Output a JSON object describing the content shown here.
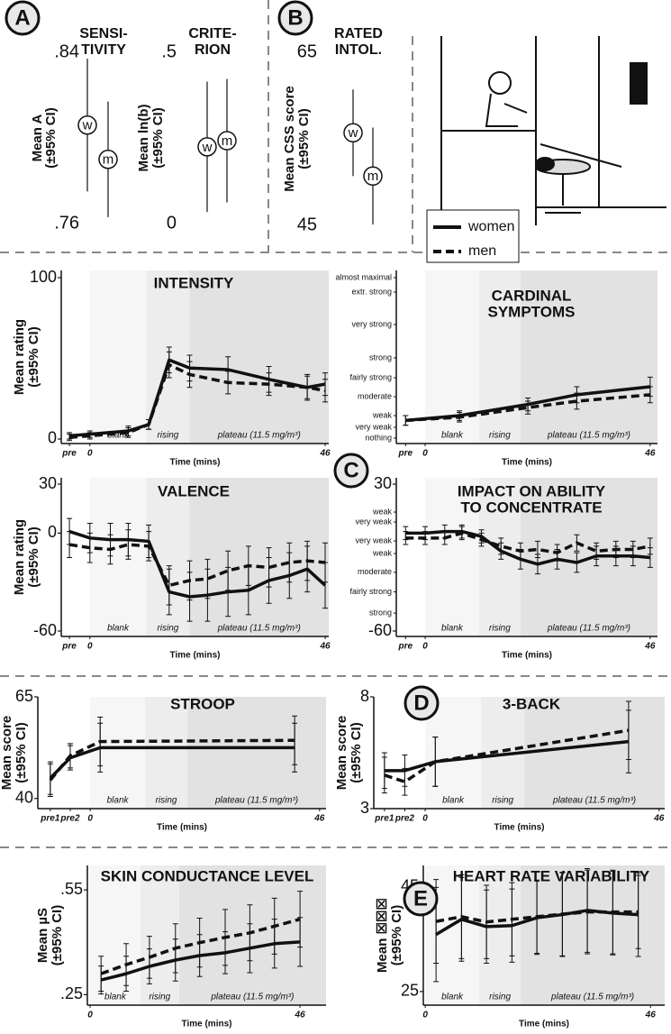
{
  "legend": [
    {
      "name": "women",
      "dash": "solid"
    },
    {
      "name": "men",
      "dash": "dashed"
    }
  ],
  "chart_data": [
    {
      "type": "interval",
      "panel_label": "A",
      "title_lines": [
        "SENSI-",
        "TIVITY"
      ],
      "ylabel_lines": [
        "Mean A",
        "(±95% CI)"
      ],
      "ylim": [
        0.76,
        0.84
      ],
      "yticks": [
        {
          "value": 0.76,
          "label": ".76"
        },
        {
          "value": 0.84,
          "label": ".84"
        }
      ],
      "series": [
        {
          "marker": "w",
          "values": [
            0.806
          ],
          "errors": [
            0.031
          ]
        },
        {
          "marker": "m",
          "values": [
            0.79
          ],
          "errors": [
            0.027
          ]
        }
      ]
    },
    {
      "type": "interval",
      "title_lines": [
        "CRITE-",
        "RION"
      ],
      "ylabel_lines": [
        "Mean ln(b)",
        "(±95% CI)"
      ],
      "ylim": [
        0,
        0.5
      ],
      "yticks": [
        0,
        {
          "value": 0.5,
          "label": ".5"
        }
      ],
      "series": [
        {
          "marker": "w",
          "values": [
            0.224
          ],
          "errors": [
            0.19
          ]
        },
        {
          "marker": "m",
          "values": [
            0.242
          ],
          "errors": [
            0.18
          ]
        }
      ]
    },
    {
      "type": "interval",
      "panel_label": "B",
      "title_lines": [
        "RATED",
        "INTOL."
      ],
      "ylabel_lines": [
        "Mean CSS score",
        "(±95% CI)"
      ],
      "ylim": [
        45,
        65
      ],
      "yticks": [
        45,
        65
      ],
      "series": [
        {
          "marker": "w",
          "values": [
            55.7
          ],
          "errors": [
            5
          ]
        },
        {
          "marker": "m",
          "values": [
            50.7
          ],
          "errors": [
            5.6
          ]
        }
      ]
    },
    {
      "type": "line",
      "title_lines": [
        "INTENSITY"
      ],
      "ylabel_lines": [
        "Mean rating",
        "(±95% CI)"
      ],
      "xlabel": "Time (mins)",
      "x": [
        -4,
        0,
        7.5,
        11.5,
        15.5,
        19.5,
        27,
        35,
        42.5,
        46
      ],
      "xlim": [
        -5.6,
        46.7
      ],
      "xticks": [
        {
          "value": -4,
          "label": "pre"
        },
        0,
        46
      ],
      "ylim": [
        -2.8,
        104.5
      ],
      "yticks": [
        0,
        100
      ],
      "regions": [
        {
          "label": "blank",
          "start": 0,
          "color": "#f6f6f6"
        },
        {
          "label": "rising",
          "start": 11,
          "color": "#ededed"
        },
        {
          "label": "plateau (11.5 mg/m³)",
          "start": 19.5,
          "color": "#e2e2e2"
        }
      ],
      "series": [
        {
          "values": [
            2,
            3,
            5,
            9,
            49,
            44,
            43,
            37,
            32,
            34
          ],
          "errors": [
            2,
            2,
            3,
            3,
            8,
            8,
            8,
            8,
            8,
            7
          ]
        },
        {
          "values": [
            1,
            2,
            4,
            9,
            46,
            40,
            35,
            34,
            32,
            30
          ],
          "errors": [
            2,
            2,
            3,
            3,
            8,
            8,
            7,
            7,
            7,
            7
          ]
        }
      ]
    },
    {
      "type": "line",
      "title_lines": [
        "CARDINAL",
        "SYMPTOMS"
      ],
      "xlabel": "Time (mins)",
      "x": [
        -4,
        7,
        21,
        31,
        46
      ],
      "xlim": [
        -5.9,
        47.5
      ],
      "xticks": [
        {
          "value": -4,
          "label": "pre"
        },
        0,
        46
      ],
      "ylim": [
        -3.4,
        104.5
      ],
      "category_ticks": [
        {
          "value": 100,
          "label": "almost maximal"
        },
        {
          "value": 91,
          "label": "extr. strong"
        },
        {
          "value": 70.8,
          "label": "very strong"
        },
        {
          "value": 50,
          "label": "strong"
        },
        {
          "value": 37.6,
          "label": "fairly strong"
        },
        {
          "value": 25.8,
          "label": "moderate"
        },
        {
          "value": 14,
          "label": "weak"
        },
        {
          "value": 6.7,
          "label": "very weak"
        },
        {
          "value": 0,
          "label": "nothing"
        }
      ],
      "regions": [
        {
          "label": "blank",
          "start": 0,
          "color": "#f6f6f6"
        },
        {
          "label": "rising",
          "start": 11,
          "color": "#ededed"
        },
        {
          "label": "plateau (11.5 mg/m³)",
          "start": 19.5,
          "color": "#e2e2e2"
        }
      ],
      "series": [
        {
          "values": [
            11,
            14,
            21,
            27,
            32
          ],
          "errors": [
            3,
            3,
            4,
            5,
            6
          ]
        },
        {
          "values": [
            11,
            13,
            19,
            23,
            27
          ],
          "errors": [
            3,
            3,
            4,
            5,
            5
          ]
        }
      ]
    },
    {
      "type": "line",
      "title_lines": [
        "VALENCE"
      ],
      "ylabel_lines": [
        "Mean rating",
        "(±95% CI)"
      ],
      "xlabel": "Time (mins)",
      "x": [
        -4,
        0,
        4,
        7.5,
        11.5,
        15.5,
        19.5,
        23,
        27,
        31,
        35,
        39,
        42.5,
        46
      ],
      "xlim": [
        -5.6,
        46.7
      ],
      "xticks": [
        {
          "value": -4,
          "label": "pre"
        },
        0,
        46
      ],
      "ylim": [
        -63.3,
        33.9
      ],
      "yticks": [
        -60,
        0,
        30
      ],
      "regions": [
        {
          "label": "blank",
          "start": 0,
          "color": "#f6f6f6"
        },
        {
          "label": "rising",
          "start": 11,
          "color": "#ededed"
        },
        {
          "label": "plateau (11.5 mg/m³)",
          "start": 19.5,
          "color": "#e2e2e2"
        }
      ],
      "series": [
        {
          "values": [
            1,
            -3,
            -4,
            -4,
            -5,
            -36,
            -39,
            -38,
            -36,
            -35,
            -29,
            -26,
            -22,
            -32
          ],
          "errors": [
            8,
            9,
            10,
            10,
            10,
            14,
            15,
            16,
            15,
            15,
            14,
            14,
            14,
            14
          ]
        },
        {
          "values": [
            -7,
            -9,
            -10,
            -7,
            -8,
            -32,
            -29,
            -28,
            -23,
            -20,
            -21,
            -18,
            -17,
            -18
          ],
          "errors": [
            8,
            9,
            9,
            9,
            9,
            12,
            12,
            12,
            12,
            12,
            12,
            12,
            12,
            12
          ]
        }
      ]
    },
    {
      "type": "line",
      "panel_label": "C",
      "title_lines": [
        "IMPACT ON ABILITY",
        "TO CONCENTRATE"
      ],
      "xlabel": "Time (mins)",
      "x": [
        -4,
        0,
        4,
        7.5,
        11.5,
        15.5,
        19.5,
        23,
        27,
        31,
        35,
        39,
        42.5,
        46
      ],
      "xlim": [
        -5.9,
        47.5
      ],
      "xticks": [
        {
          "value": -4,
          "label": "pre"
        },
        0,
        46
      ],
      "ylim": [
        -63.3,
        33.9
      ],
      "yticks": [
        -60,
        30
      ],
      "category_ticks": [
        {
          "value": 12.9,
          "label": "weak"
        },
        {
          "value": 6.8,
          "label": "very weak"
        },
        {
          "value": -4.8,
          "label": "very weak"
        },
        {
          "value": -12.5,
          "label": "weak"
        },
        {
          "value": -24,
          "label": "moderate"
        },
        {
          "value": -36,
          "label": "fairly strong"
        },
        {
          "value": -49,
          "label": "strong"
        }
      ],
      "regions": [
        {
          "label": "blank",
          "start": 0,
          "color": "#f6f6f6"
        },
        {
          "label": "rising",
          "start": 11,
          "color": "#ededed"
        },
        {
          "label": "plateau (11.5 mg/m³)",
          "start": 19.5,
          "color": "#e2e2e2"
        }
      ],
      "series": [
        {
          "values": [
            0,
            0,
            1,
            1,
            -2,
            -11,
            -16,
            -19,
            -16,
            -18,
            -14,
            -14,
            -14,
            -15
          ],
          "errors": [
            4,
            4,
            4,
            4,
            4,
            5,
            6,
            6,
            6,
            6,
            6,
            6,
            6,
            6
          ]
        },
        {
          "values": [
            -3,
            -3,
            -3,
            0,
            -4,
            -8,
            -11,
            -10,
            -12,
            -6,
            -11,
            -10,
            -10,
            -8
          ],
          "errors": [
            4,
            4,
            4,
            4,
            4,
            5,
            5,
            5,
            5,
            5,
            5,
            5,
            5,
            5
          ]
        }
      ]
    },
    {
      "type": "line",
      "title_lines": [
        "STROOP"
      ],
      "ylabel_lines": [
        "Mean score",
        "(±95% CI)"
      ],
      "xlabel": "Time (mins)",
      "x": [
        -8,
        -4,
        2,
        41
      ],
      "xlim": [
        -10.5,
        47.3
      ],
      "xticks": [
        {
          "value": -8,
          "label": "pre1"
        },
        {
          "value": -4,
          "label": "pre2"
        },
        0,
        46
      ],
      "ylim": [
        37.5,
        65
      ],
      "yticks": [
        40,
        65
      ],
      "regions": [
        {
          "label": "blank",
          "start": 0,
          "color": "#f6f6f6"
        },
        {
          "label": "rising",
          "start": 11,
          "color": "#ededed"
        },
        {
          "label": "plateau (11.5 mg/m³)",
          "start": 19.5,
          "color": "#e2e2e2"
        }
      ],
      "series": [
        {
          "values": [
            45,
            50,
            52.5,
            52.5
          ],
          "errors": [
            4,
            3,
            6,
            6
          ]
        },
        {
          "values": [
            44.5,
            50.5,
            54,
            54.3
          ],
          "errors": [
            4,
            3,
            6,
            6
          ]
        }
      ]
    },
    {
      "type": "line",
      "panel_label": "D",
      "title_lines": [
        "3-BACK"
      ],
      "ylabel_lines": [
        "Mean score",
        "(±95% CI)"
      ],
      "xlabel": "Time (mins)",
      "x": [
        -8,
        -4,
        2,
        40
      ],
      "xlim": [
        -10.1,
        47.1
      ],
      "xticks": [
        {
          "value": -8,
          "label": "pre1"
        },
        {
          "value": -4,
          "label": "pre2"
        },
        0,
        46
      ],
      "ylim": [
        3,
        8
      ],
      "yticks": [
        3,
        8
      ],
      "regions": [
        {
          "label": "blank",
          "start": 0,
          "color": "#f6f6f6"
        },
        {
          "label": "rising",
          "start": 11,
          "color": "#ededed"
        },
        {
          "label": "plateau (11.5 mg/m³)",
          "start": 19.5,
          "color": "#e2e2e2"
        }
      ],
      "series": [
        {
          "values": [
            4.7,
            4.7,
            5.1,
            6.0
          ],
          "errors": [
            0.8,
            0.7,
            1.1,
            1.4
          ]
        },
        {
          "values": [
            4.5,
            4.2,
            5.1,
            6.5
          ],
          "errors": [
            0.8,
            0.6,
            1.1,
            1.3
          ]
        }
      ]
    },
    {
      "type": "line",
      "title_lines": [
        "SKIN CONDUCTANCE LEVEL"
      ],
      "ylabel_lines": [
        "Mean µS",
        "(±95% CI)"
      ],
      "xlabel": "Time (mins)",
      "x": [
        2.4,
        7.9,
        13,
        18.7,
        24,
        29.6,
        35,
        40.4,
        46
      ],
      "xlim": [
        -0.6,
        51.7
      ],
      "xticks": [
        0,
        46
      ],
      "ylim": [
        0.22,
        0.62
      ],
      "yticks": [
        {
          "value": 0.25,
          "label": ".25"
        },
        {
          "value": 0.55,
          "label": ".55"
        }
      ],
      "regions": [
        {
          "label": "blank",
          "start": 0,
          "color": "#f6f6f6"
        },
        {
          "label": "rising",
          "start": 11,
          "color": "#ededed"
        },
        {
          "label": "plateau (11.5 mg/m³)",
          "start": 19.5,
          "color": "#e2e2e2"
        }
      ],
      "series": [
        {
          "values": [
            0.292,
            0.31,
            0.331,
            0.349,
            0.362,
            0.37,
            0.383,
            0.396,
            0.401
          ],
          "errors": [
            0.04,
            0.05,
            0.05,
            0.06,
            0.06,
            0.06,
            0.07,
            0.07,
            0.07
          ]
        },
        {
          "values": [
            0.31,
            0.336,
            0.357,
            0.383,
            0.399,
            0.414,
            0.427,
            0.446,
            0.466
          ],
          "errors": [
            0.05,
            0.06,
            0.06,
            0.07,
            0.07,
            0.08,
            0.08,
            0.08,
            0.08
          ]
        }
      ]
    },
    {
      "type": "line",
      "panel_label": "E",
      "title_lines": [
        "HEART RATE VARIABILITY"
      ],
      "ylabel_lines": [
        "Mean ☒☒☒",
        "(±95% CI)"
      ],
      "xlabel": "Time (mins)",
      "x": [
        2.2,
        7.4,
        12.5,
        17.7,
        22.8,
        28,
        33.1,
        38.3,
        43.5
      ],
      "xlim": [
        -0.4,
        48.9
      ],
      "xticks": [
        0,
        46
      ],
      "ylim": [
        22.4,
        49.1
      ],
      "yticks": [
        25,
        45
      ],
      "regions": [
        {
          "label": "blank",
          "start": 0,
          "color": "#f6f6f6"
        },
        {
          "label": "rising",
          "start": 11,
          "color": "#ededed"
        },
        {
          "label": "plateau (11.5 mg/m³)",
          "start": 19.5,
          "color": "#e2e2e2"
        }
      ],
      "series": [
        {
          "values": [
            35.9,
            38.8,
            37.4,
            37.6,
            39.1,
            39.7,
            40.5,
            40,
            39.7
          ],
          "errors": [
            9,
            8,
            7,
            7,
            7,
            8,
            8,
            8,
            8
          ]
        },
        {
          "values": [
            38.4,
            39.3,
            38.3,
            38.8,
            39.3,
            39.8,
            40.2,
            40.2,
            40.2
          ],
          "errors": [
            8,
            8,
            7,
            7,
            7,
            8,
            8,
            8,
            7
          ]
        }
      ]
    }
  ]
}
